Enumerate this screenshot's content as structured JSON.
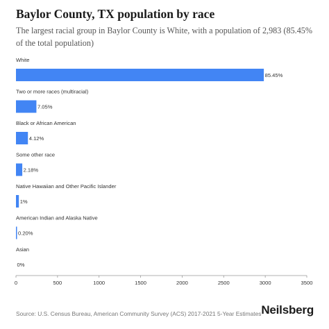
{
  "title": "Baylor County, TX population by race",
  "subtitle": "The largest racial group in Baylor County is White, with a population of 2,983 (85.45% of the total population)",
  "source": "Source: U.S. Census Bureau, American Community Survey (ACS) 2017-2021 5-Year Estimates",
  "brand": "Neilsberg",
  "colors": {
    "bar": "#4285f4",
    "axis": "#999999",
    "text": "#333333"
  },
  "chart_data": {
    "type": "bar",
    "orientation": "horizontal",
    "categories": [
      "White",
      "Two or more races (multiracial)",
      "Black or African American",
      "Some other race",
      "Native Hawaiian and Other Pacific Islander",
      "American Indian and Alaska Native",
      "Asian"
    ],
    "values": [
      2983,
      246,
      144,
      76,
      35,
      7,
      0
    ],
    "data_labels": [
      "85.45%",
      "7.05%",
      "4.12%",
      "2.18%",
      "1%",
      "0.20%",
      "0%"
    ],
    "xlim": [
      0,
      3500
    ],
    "xticks": [
      0,
      500,
      1000,
      1500,
      2000,
      2500,
      3000,
      3500
    ],
    "grid": false
  }
}
